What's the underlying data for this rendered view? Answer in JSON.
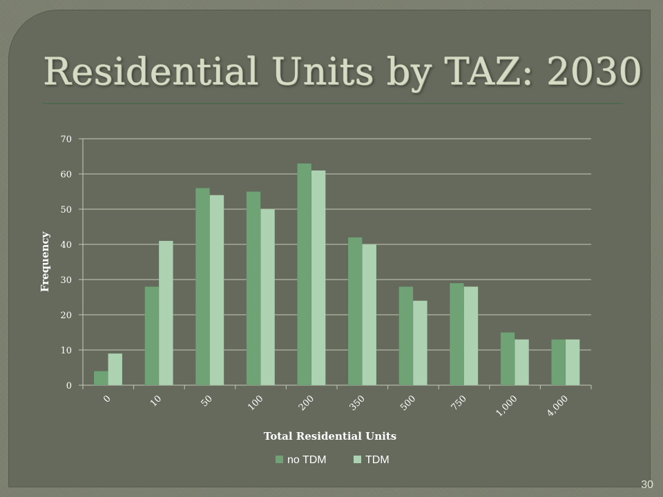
{
  "slide": {
    "title": "Residential Units by TAZ: 2030",
    "page_number": "30"
  },
  "colors": {
    "no_tdm": "#6fa376",
    "tdm": "#acd2b1",
    "grid": "#c5c9ba",
    "axis_text": "#ffffff"
  },
  "chart_data": {
    "type": "bar",
    "categories": [
      "0",
      "10",
      "50",
      "100",
      "200",
      "350",
      "500",
      "750",
      "1,000",
      "4,000"
    ],
    "series": [
      {
        "name": "no TDM",
        "values": [
          4,
          28,
          56,
          55,
          63,
          42,
          28,
          29,
          15,
          13
        ]
      },
      {
        "name": "TDM",
        "values": [
          9,
          41,
          54,
          50,
          61,
          40,
          24,
          28,
          13,
          13
        ]
      }
    ],
    "xlabel": "Total Residential Units",
    "ylabel": "Frequency",
    "ylim": [
      0,
      70
    ],
    "yticks": [
      0,
      10,
      20,
      30,
      40,
      50,
      60,
      70
    ],
    "grid": true,
    "legend_position": "bottom"
  }
}
